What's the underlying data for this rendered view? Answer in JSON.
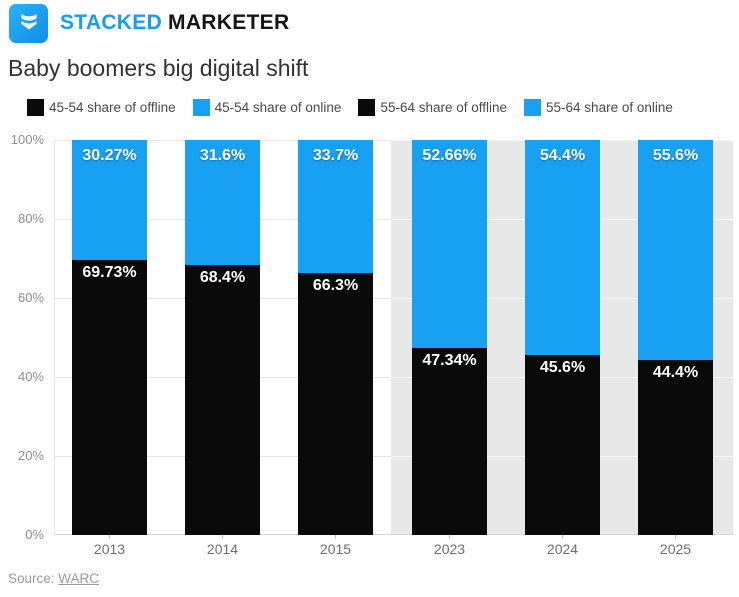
{
  "brand": {
    "name_primary": "STACKED",
    "name_secondary": "MARKETER",
    "accent_color": "#169df2"
  },
  "title": "Baby boomers big digital shift",
  "legend": {
    "items": [
      {
        "label": "45-54 share of offline",
        "color": "#0a0a0a"
      },
      {
        "label": "45-54 share of online",
        "color": "#18a0f2"
      },
      {
        "label": "55-64 share of offline",
        "color": "#0a0a0a"
      },
      {
        "label": "55-64 share of online",
        "color": "#18a0f2"
      }
    ]
  },
  "chart_data": {
    "type": "bar",
    "stacked": true,
    "title": "Baby boomers big digital shift",
    "categories": [
      "2013",
      "2014",
      "2015",
      "2023",
      "2024",
      "2025"
    ],
    "series": [
      {
        "name": "share of offline",
        "color": "#0a0a0a",
        "values": [
          69.73,
          68.4,
          66.3,
          47.34,
          45.6,
          44.4
        ],
        "data_labels": [
          "69.73%",
          "68.4%",
          "66.3%",
          "47.34%",
          "45.6%",
          "44.4%"
        ]
      },
      {
        "name": "share of online",
        "color": "#18a0f2",
        "values": [
          30.27,
          31.6,
          33.7,
          52.66,
          54.4,
          55.6
        ],
        "data_labels": [
          "30.27%",
          "31.6%",
          "33.7%",
          "52.66%",
          "54.4%",
          "55.6%"
        ]
      }
    ],
    "xlabel": "",
    "ylabel": "",
    "ylim": [
      0,
      100
    ],
    "ytick_values": [
      0,
      20,
      40,
      60,
      80,
      100
    ],
    "ytick_labels": [
      "0%",
      "20%",
      "40%",
      "60%",
      "80%",
      "100%"
    ],
    "grid": true,
    "legend_position": "top",
    "highlight_region": {
      "from_category": "2023",
      "to_category": "2025",
      "color": "#e8e8e8"
    }
  },
  "source": {
    "prefix": "Source: ",
    "link_label": "WARC"
  }
}
